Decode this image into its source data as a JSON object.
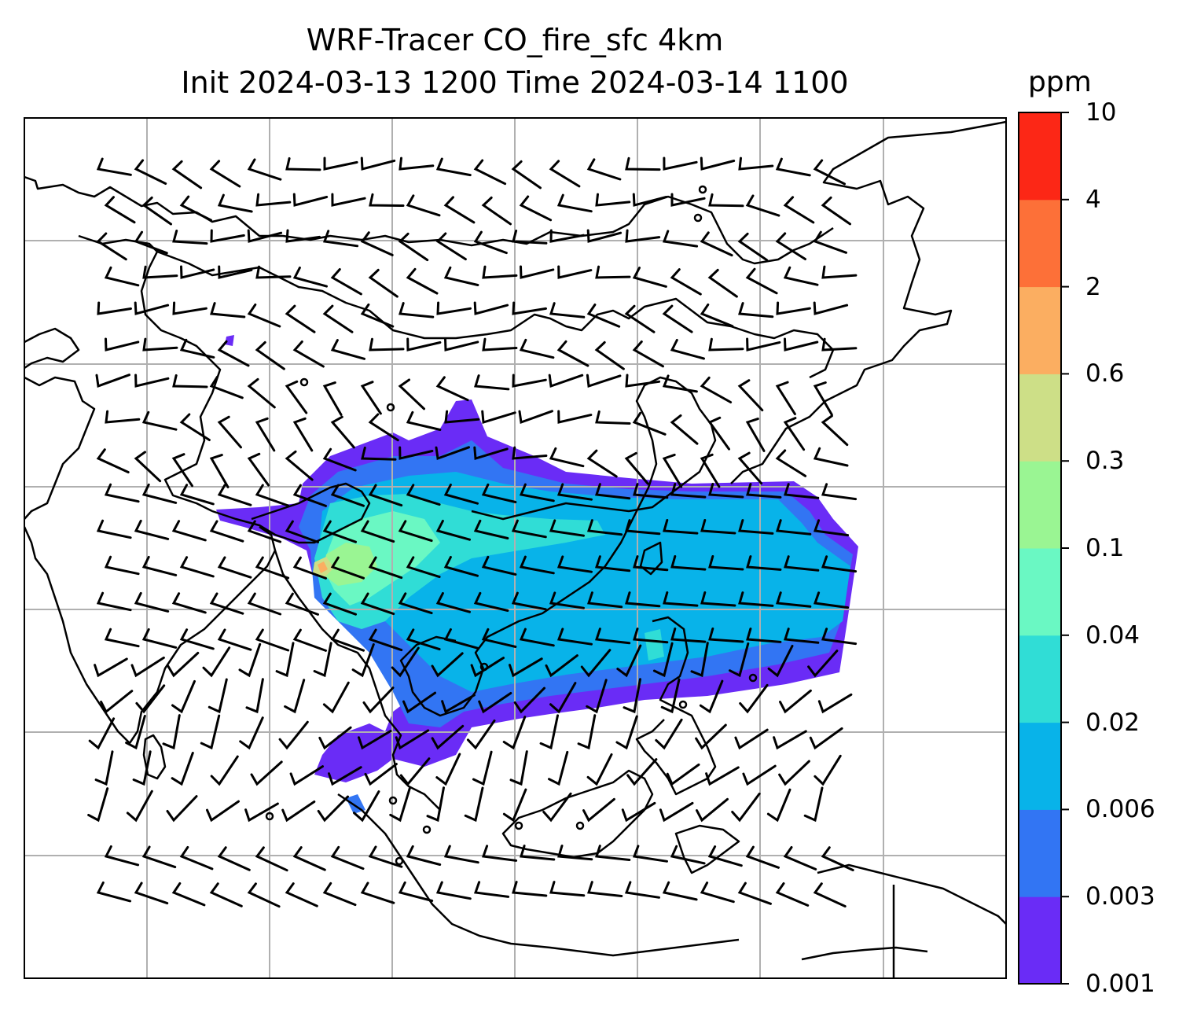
{
  "title": {
    "line1": "WRF-Tracer CO_fire_sfc 4km",
    "line2": "Init 2024-03-13 1200 Time 2024-03-14 1100"
  },
  "colorbar": {
    "unit": "ppm",
    "levels": [
      "0.001",
      "0.003",
      "0.006",
      "0.02",
      "0.04",
      "0.1",
      "0.3",
      "0.6",
      "2",
      "4",
      "10"
    ],
    "colors": [
      "#6a2cf6",
      "#3275f3",
      "#08b3e9",
      "#30ddd6",
      "#6af8c3",
      "#9af593",
      "#cddf87",
      "#fbae61",
      "#fd7038",
      "#fc2716"
    ]
  },
  "map": {
    "field": "CO_fire_sfc",
    "background": "#ffffff",
    "gridline_color": "#b0b0b0",
    "coastline_color": "#000000",
    "wind_barbs": true
  }
}
